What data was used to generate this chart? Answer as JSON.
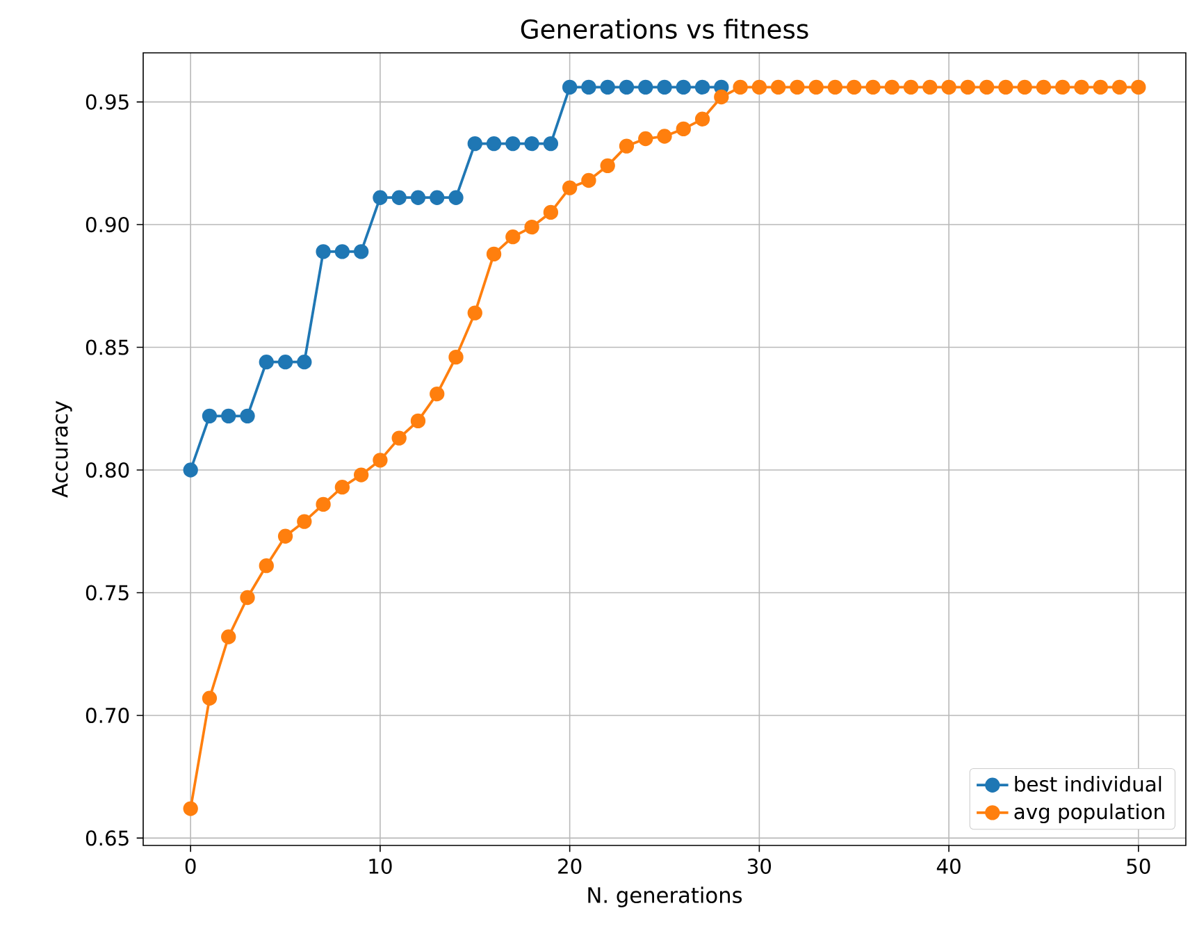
{
  "chart_data": {
    "type": "line",
    "title": "Generations vs fitness",
    "xlabel": "N. generations",
    "ylabel": "Accuracy",
    "x": [
      0,
      1,
      2,
      3,
      4,
      5,
      6,
      7,
      8,
      9,
      10,
      11,
      12,
      13,
      14,
      15,
      16,
      17,
      18,
      19,
      20,
      21,
      22,
      23,
      24,
      25,
      26,
      27,
      28,
      29,
      30,
      31,
      32,
      33,
      34,
      35,
      36,
      37,
      38,
      39,
      40,
      41,
      42,
      43,
      44,
      45,
      46,
      47,
      48,
      49,
      50
    ],
    "series": [
      {
        "name": "best individual",
        "color": "#1f77b4",
        "values": [
          0.8,
          0.822,
          0.822,
          0.822,
          0.844,
          0.844,
          0.844,
          0.889,
          0.889,
          0.889,
          0.911,
          0.911,
          0.911,
          0.911,
          0.911,
          0.933,
          0.933,
          0.933,
          0.933,
          0.933,
          0.956,
          0.956,
          0.956,
          0.956,
          0.956,
          0.956,
          0.956,
          0.956,
          0.956,
          null,
          null,
          null,
          null,
          null,
          null,
          null,
          null,
          null,
          null,
          null,
          null,
          null,
          null,
          null,
          null,
          null,
          null,
          null,
          null,
          null,
          null
        ]
      },
      {
        "name": "avg population",
        "color": "#ff7f0e",
        "values": [
          0.662,
          0.707,
          0.732,
          0.748,
          0.761,
          0.773,
          0.779,
          0.786,
          0.793,
          0.798,
          0.804,
          0.813,
          0.82,
          0.831,
          0.846,
          0.864,
          0.888,
          0.895,
          0.899,
          0.905,
          0.915,
          0.918,
          0.924,
          0.932,
          0.935,
          0.936,
          0.939,
          0.943,
          0.952,
          0.956,
          0.956,
          0.956,
          0.956,
          0.956,
          0.956,
          0.956,
          0.956,
          0.956,
          0.956,
          0.956,
          0.956,
          0.956,
          0.956,
          0.956,
          0.956,
          0.956,
          0.956,
          0.956,
          0.956,
          0.956,
          0.956
        ]
      }
    ],
    "xlim": [
      -2.5,
      52.5
    ],
    "ylim": [
      0.647,
      0.97
    ],
    "xticks": [
      0,
      10,
      20,
      30,
      40,
      50
    ],
    "yticks": [
      0.65,
      {
        "value": 0.7,
        "label": "0.70"
      },
      0.75,
      {
        "value": 0.8,
        "label": "0.80"
      },
      0.85,
      {
        "value": 0.9,
        "label": "0.90"
      },
      0.95
    ],
    "grid": true,
    "legend": "bottom right",
    "marker": "circle",
    "line_style": "solid"
  }
}
